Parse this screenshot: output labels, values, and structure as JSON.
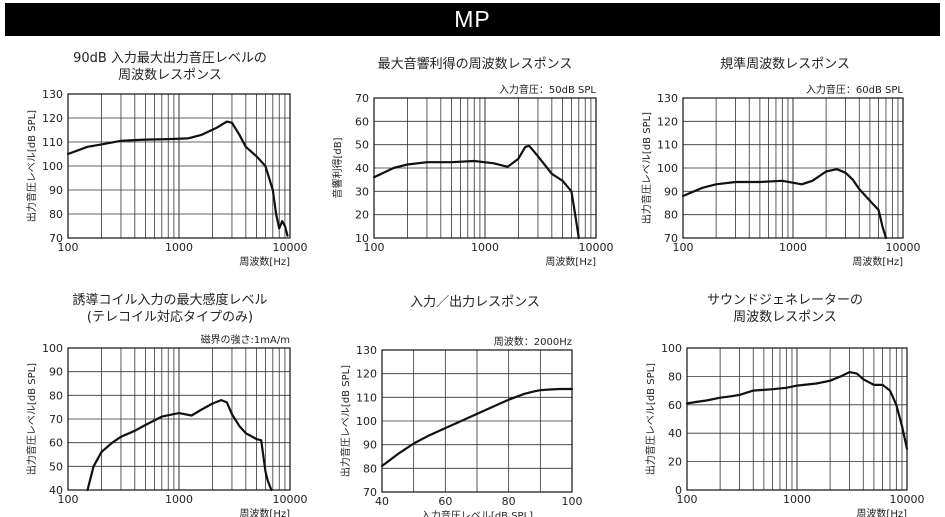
{
  "header": {
    "title": "MP"
  },
  "chart_data": [
    {
      "type": "line",
      "title": [
        "90dB 入力最大出力音圧レベルの",
        "周波数レスポンス"
      ],
      "subtitle": "",
      "xlabel": "周波数[Hz]",
      "ylabel": "出力音圧レベル[dB SPL]",
      "xscale": "log",
      "xlim": [
        100,
        10000
      ],
      "ylim": [
        70,
        130
      ],
      "xticks": [
        "100",
        "1000",
        "10000"
      ],
      "yticks": [
        "70",
        "80",
        "90",
        "100",
        "110",
        "120",
        "130"
      ],
      "grid": true,
      "x": [
        100,
        150,
        200,
        300,
        500,
        800,
        1200,
        1600,
        2200,
        2700,
        3000,
        3500,
        4000,
        5000,
        6000,
        7000,
        7500,
        8000,
        8500,
        9000,
        9500
      ],
      "y": [
        105,
        108,
        109,
        110.5,
        111,
        111.2,
        111.5,
        113,
        116,
        118.5,
        118,
        113,
        108,
        104,
        100,
        90,
        80,
        74,
        77,
        75,
        71
      ]
    },
    {
      "type": "line",
      "title": [
        "最大音響利得の周波数レスポンス"
      ],
      "subtitle": "入力音圧：50dB SPL",
      "xlabel": "周波数[Hz]",
      "ylabel": "音響利得[dB]",
      "xscale": "log",
      "xlim": [
        100,
        10000
      ],
      "ylim": [
        10,
        70
      ],
      "xticks": [
        "100",
        "1000",
        "10000"
      ],
      "yticks": [
        "10",
        "20",
        "30",
        "40",
        "50",
        "60",
        "70"
      ],
      "grid": true,
      "x": [
        100,
        150,
        200,
        300,
        500,
        800,
        1200,
        1600,
        2000,
        2300,
        2500,
        3000,
        3500,
        4000,
        5000,
        6000,
        6500,
        7000
      ],
      "y": [
        36,
        40,
        41.5,
        42.5,
        42.5,
        43,
        42,
        40.5,
        44,
        49,
        49.5,
        45,
        41,
        37.5,
        34.5,
        30,
        20,
        10
      ]
    },
    {
      "type": "line",
      "title": [
        "規準周波数レスポンス"
      ],
      "subtitle": "入力音圧：60dB SPL",
      "xlabel": "周波数[Hz]",
      "ylabel": "出力音圧レベル[dB SPL]",
      "xscale": "log",
      "xlim": [
        100,
        10000
      ],
      "ylim": [
        70,
        130
      ],
      "xticks": [
        "100",
        "1000",
        "10000"
      ],
      "yticks": [
        "70",
        "80",
        "90",
        "100",
        "110",
        "120",
        "130"
      ],
      "grid": true,
      "x": [
        100,
        150,
        200,
        300,
        500,
        800,
        1200,
        1500,
        2000,
        2500,
        3000,
        3500,
        4000,
        5000,
        6000,
        6500,
        7000
      ],
      "y": [
        88,
        91.5,
        93,
        94,
        94,
        94.5,
        93,
        94.5,
        98.5,
        99.5,
        98,
        95,
        91,
        86,
        82,
        75,
        70
      ]
    },
    {
      "type": "line",
      "title": [
        "誘導コイル入力の最大感度レベル",
        "(テレコイル対応タイプのみ)"
      ],
      "subtitle": "磁界の強さ:1mA/m",
      "xlabel": "周波数[Hz]",
      "ylabel": "出力音圧レベル[dB SPL]",
      "xscale": "log",
      "xlim": [
        100,
        10000
      ],
      "ylim": [
        40,
        100
      ],
      "xticks": [
        "100",
        "1000",
        "10000"
      ],
      "yticks": [
        "40",
        "50",
        "60",
        "70",
        "80",
        "90",
        "100"
      ],
      "grid": true,
      "x": [
        150,
        170,
        200,
        250,
        300,
        400,
        500,
        700,
        1000,
        1300,
        1600,
        2000,
        2400,
        2700,
        3000,
        3500,
        4000,
        5000,
        5500,
        6000,
        6300,
        6800
      ],
      "y": [
        40,
        50,
        56,
        60,
        62.5,
        65,
        67.5,
        71,
        72.5,
        71.5,
        74,
        76.5,
        78,
        77,
        72,
        67,
        64,
        61.5,
        61,
        48,
        44,
        40
      ]
    },
    {
      "type": "line",
      "title": [
        "入力／出力レスポンス"
      ],
      "subtitle": "周波数：2000Hz",
      "xlabel": "入力音圧レベル[dB SPL]",
      "ylabel": "出力音圧レベル[dB SPL]",
      "xscale": "linear",
      "xlim": [
        40,
        100
      ],
      "ylim": [
        70,
        130
      ],
      "xticks": [
        "40",
        "60",
        "80",
        "100"
      ],
      "yticks": [
        "70",
        "80",
        "90",
        "100",
        "110",
        "120",
        "130"
      ],
      "grid": true,
      "x": [
        40,
        45,
        50,
        55,
        60,
        65,
        70,
        75,
        80,
        85,
        88,
        90,
        93,
        96,
        100
      ],
      "y": [
        81,
        86,
        90.5,
        94,
        97,
        100,
        103,
        106,
        109,
        111.5,
        112.5,
        113,
        113.3,
        113.5,
        113.5
      ]
    },
    {
      "type": "line",
      "title": [
        "サウンドジェネレーターの",
        "周波数レスポンス"
      ],
      "subtitle": "",
      "xlabel": "周波数[Hz]",
      "ylabel": "出力音圧レベル[dB SPL]",
      "xscale": "log",
      "xlim": [
        100,
        10000
      ],
      "ylim": [
        0,
        100
      ],
      "xticks": [
        "100",
        "1000",
        "10000"
      ],
      "yticks": [
        "0",
        "20",
        "40",
        "60",
        "80",
        "100"
      ],
      "grid": true,
      "x": [
        100,
        120,
        150,
        200,
        250,
        300,
        400,
        600,
        800,
        1000,
        1500,
        2000,
        2500,
        3000,
        3500,
        4000,
        5000,
        6000,
        7000,
        8000,
        9000,
        10000
      ],
      "y": [
        61,
        62,
        63,
        65,
        66,
        67,
        70,
        71,
        72,
        73.5,
        75,
        77,
        80,
        83,
        82,
        78,
        74,
        74,
        70,
        60,
        45,
        29
      ]
    }
  ]
}
